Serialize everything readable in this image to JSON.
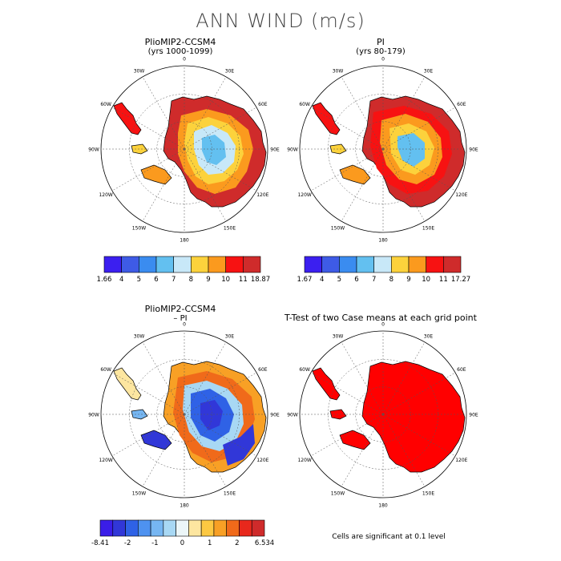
{
  "title": "ANN WIND (m/s)",
  "panels": [
    {
      "id": "plio",
      "title": "PlioMIP2-CCSM4",
      "subtitle": "(yrs 1000-1099)",
      "colorbar": {
        "colors": [
          "#3b1ff0",
          "#3e5be6",
          "#3a8cf0",
          "#63c0f0",
          "#c8e8f8",
          "#fcd23c",
          "#fb9a1e",
          "#f71212",
          "#cf2b2b"
        ],
        "labels": [
          "1.66",
          "4",
          "5",
          "6",
          "7",
          "8",
          "9",
          "10",
          "11",
          "18.87"
        ]
      }
    },
    {
      "id": "pi",
      "title": "PI",
      "subtitle": "(yrs 80-179)",
      "colorbar": {
        "colors": [
          "#3b1ff0",
          "#3e5be6",
          "#3a8cf0",
          "#63c0f0",
          "#c8e8f8",
          "#fcd23c",
          "#fb9a1e",
          "#f71212",
          "#cf2b2b"
        ],
        "labels": [
          "1.67",
          "4",
          "5",
          "6",
          "7",
          "8",
          "9",
          "10",
          "11",
          "17.27"
        ]
      }
    },
    {
      "id": "diff",
      "title": "PlioMIP2-CCSM4",
      "subtitle": "– PI",
      "colorbar": {
        "colors": [
          "#3a1de8",
          "#3137d8",
          "#2f62e6",
          "#4e92f0",
          "#76b6f2",
          "#a8d8f4",
          "#ecf6f8",
          "#fde6a0",
          "#fcc842",
          "#f8a025",
          "#f06a1a",
          "#e8281c",
          "#cf2b2b"
        ],
        "labels": [
          "-8.41",
          "-2",
          "-1",
          "0",
          "1",
          "2",
          "6.534"
        ]
      }
    },
    {
      "id": "ttest",
      "title": "T-Test of two Case means at each grid point",
      "subtitle": "",
      "footnote": "Cells are significant at 0.1 level"
    }
  ],
  "map_labels": {
    "lon": [
      "0",
      "30E",
      "60E",
      "90E",
      "120E",
      "150E",
      "180",
      "150W",
      "120W",
      "90W",
      "60W",
      "30W"
    ]
  },
  "colors": {
    "fill_strong": "#cf2b2b",
    "ttest_fill": "#ff0000"
  }
}
